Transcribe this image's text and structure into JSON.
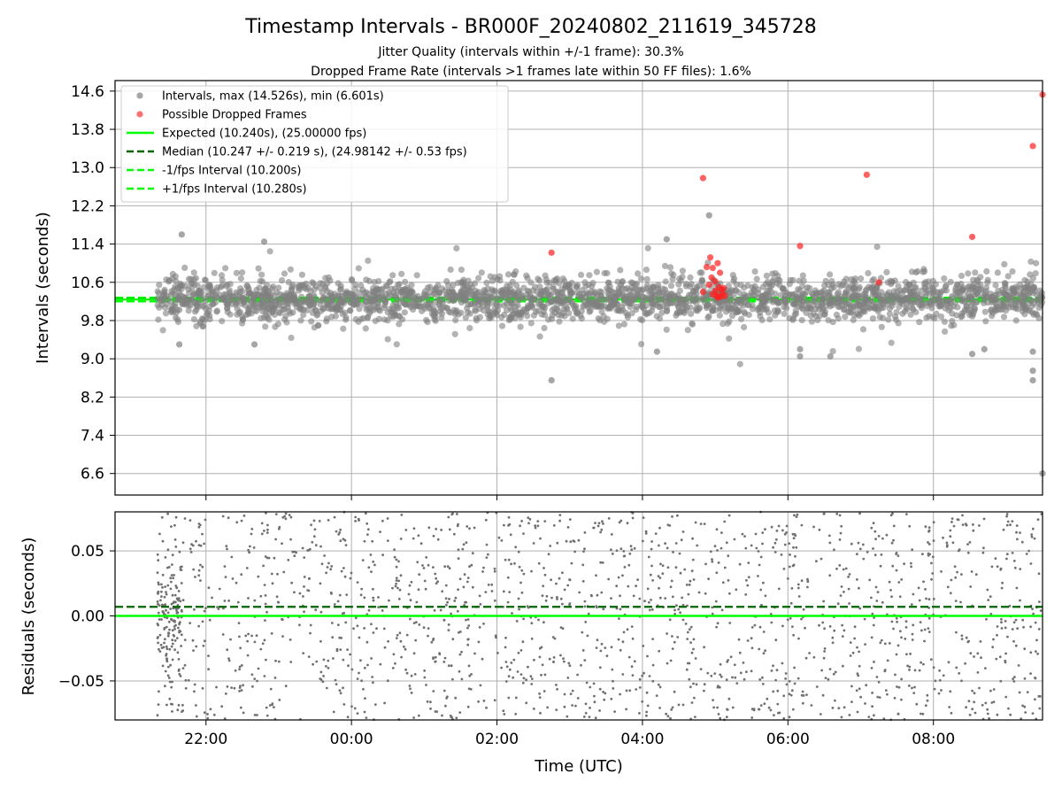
{
  "chart_data": [
    {
      "type": "scatter",
      "title": "Timestamp Intervals - BR000F_20240802_211619_345728",
      "subtitle_lines": [
        "Jitter Quality (intervals within +/-1 frame): 30.3%",
        "Dropped Frame Rate (intervals >1 frames late within 50 FF files): 1.6%"
      ],
      "ylabel": "Intervals (seconds)",
      "ylim": [
        6.15,
        14.82
      ],
      "yticks": [
        "14.6",
        "13.8",
        "13.0",
        "12.2",
        "11.4",
        "10.6",
        "9.8",
        "9.0",
        "8.2",
        "7.4",
        "6.6"
      ],
      "xlim": [
        "2024-08-02 20:45",
        "2024-08-03 09:30"
      ],
      "grid": true,
      "legend_position": "upper-left",
      "legend": [
        {
          "label": "Intervals, max (14.526s), min (6.601s)",
          "style": "marker",
          "color": "#808080"
        },
        {
          "label": "Possible Dropped Frames",
          "style": "marker",
          "color": "#ff3333"
        },
        {
          "label": "Expected (10.240s), (25.00000 fps)",
          "style": "solid",
          "color": "#00ff00"
        },
        {
          "label": "Median (10.247 +/- 0.219 s), (24.98142 +/- 0.53 fps)",
          "style": "dashed",
          "color": "#006400"
        },
        {
          "label": "-1/fps Interval (10.200s)",
          "style": "dashed",
          "color": "#00ff00"
        },
        {
          "label": "+1/fps Interval (10.280s)",
          "style": "dashed",
          "color": "#00ff00"
        }
      ],
      "reference_lines": {
        "expected": 10.24,
        "median": 10.247,
        "minus_one_frame": 10.2,
        "plus_one_frame": 10.28
      },
      "series": [
        {
          "name": "Intervals, max (14.526s), min (6.601s)",
          "color": "#808080",
          "band": {
            "x_start": "2024-08-02 21:20",
            "x_end": "2024-08-03 09:30",
            "center": 10.25,
            "core_sd": 0.22
          },
          "outliers": [
            {
              "x": "2024-08-02 21:40",
              "y": 11.6
            },
            {
              "x": "2024-08-02 21:38",
              "y": 9.3
            },
            {
              "x": "2024-08-02 22:48",
              "y": 11.45
            },
            {
              "x": "2024-08-02 22:40",
              "y": 9.3
            },
            {
              "x": "2024-08-03 02:45",
              "y": 8.55
            },
            {
              "x": "2024-08-03 04:20",
              "y": 11.5
            },
            {
              "x": "2024-08-03 04:55",
              "y": 12.0
            },
            {
              "x": "2024-08-03 04:12",
              "y": 9.15
            },
            {
              "x": "2024-08-03 06:10",
              "y": 9.2
            },
            {
              "x": "2024-08-03 06:10",
              "y": 9.05
            },
            {
              "x": "2024-08-03 06:35",
              "y": 9.05
            },
            {
              "x": "2024-08-03 08:32",
              "y": 9.1
            },
            {
              "x": "2024-08-03 08:42",
              "y": 9.2
            },
            {
              "x": "2024-08-03 09:22",
              "y": 9.15
            },
            {
              "x": "2024-08-03 09:22",
              "y": 8.75
            },
            {
              "x": "2024-08-03 09:22",
              "y": 8.55
            },
            {
              "x": "2024-08-03 09:30",
              "y": 6.601
            }
          ]
        },
        {
          "name": "Possible Dropped Frames",
          "color": "#ff3333",
          "points": [
            {
              "x": "2024-08-03 02:45",
              "y": 11.22
            },
            {
              "x": "2024-08-03 04:50",
              "y": 12.78
            },
            {
              "x": "2024-08-03 06:10",
              "y": 11.36
            },
            {
              "x": "2024-08-03 07:05",
              "y": 12.85
            },
            {
              "x": "2024-08-03 07:15",
              "y": 10.6
            },
            {
              "x": "2024-08-03 08:32",
              "y": 11.55
            },
            {
              "x": "2024-08-03 09:22",
              "y": 13.45
            },
            {
              "x": "2024-08-03 09:30",
              "y": 14.526
            },
            {
              "x": "2024-08-03 04:56",
              "y": 11.12
            },
            {
              "x": "2024-08-03 05:02",
              "y": 11.0
            },
            {
              "x": "2024-08-03 04:53",
              "y": 10.92
            },
            {
              "x": "2024-08-03 04:58",
              "y": 10.9
            },
            {
              "x": "2024-08-03 05:04",
              "y": 10.8
            },
            {
              "x": "2024-08-03 04:57",
              "y": 10.7
            },
            {
              "x": "2024-08-03 05:00",
              "y": 10.62
            },
            {
              "x": "2024-08-03 04:55",
              "y": 10.55
            },
            {
              "x": "2024-08-03 05:03",
              "y": 10.5
            },
            {
              "x": "2024-08-03 04:50",
              "y": 10.4
            },
            {
              "x": "2024-08-03 05:05",
              "y": 10.45
            },
            {
              "x": "2024-08-03 04:58",
              "y": 10.35
            },
            {
              "x": "2024-08-03 05:01",
              "y": 10.33
            },
            {
              "x": "2024-08-03 05:06",
              "y": 10.38
            },
            {
              "x": "2024-08-03 05:03",
              "y": 10.3
            },
            {
              "x": "2024-08-03 05:08",
              "y": 10.32
            },
            {
              "x": "2024-08-03 05:02",
              "y": 10.28
            },
            {
              "x": "2024-08-03 05:05",
              "y": 10.3
            },
            {
              "x": "2024-08-03 05:00",
              "y": 10.42
            },
            {
              "x": "2024-08-03 05:07",
              "y": 10.48
            }
          ]
        }
      ]
    },
    {
      "type": "scatter",
      "xlabel": "Time (UTC)",
      "ylabel": "Residuals (seconds)",
      "ylim": [
        -0.08,
        0.08
      ],
      "yticks": [
        "0.05",
        "0.00",
        "−0.05"
      ],
      "xticks": [
        "22:00",
        "00:00",
        "02:00",
        "04:00",
        "06:00",
        "08:00"
      ],
      "xlim": [
        "2024-08-02 20:45",
        "2024-08-03 09:30"
      ],
      "grid": true,
      "reference_lines": {
        "zero": 0.0,
        "median_offset": 0.007
      },
      "series": [
        {
          "name": "Residuals",
          "color": "#707070",
          "distribution": {
            "x_start": "2024-08-02 21:20",
            "x_end": "2024-08-03 09:30",
            "y_range": [
              -0.08,
              0.08
            ]
          }
        }
      ]
    }
  ]
}
